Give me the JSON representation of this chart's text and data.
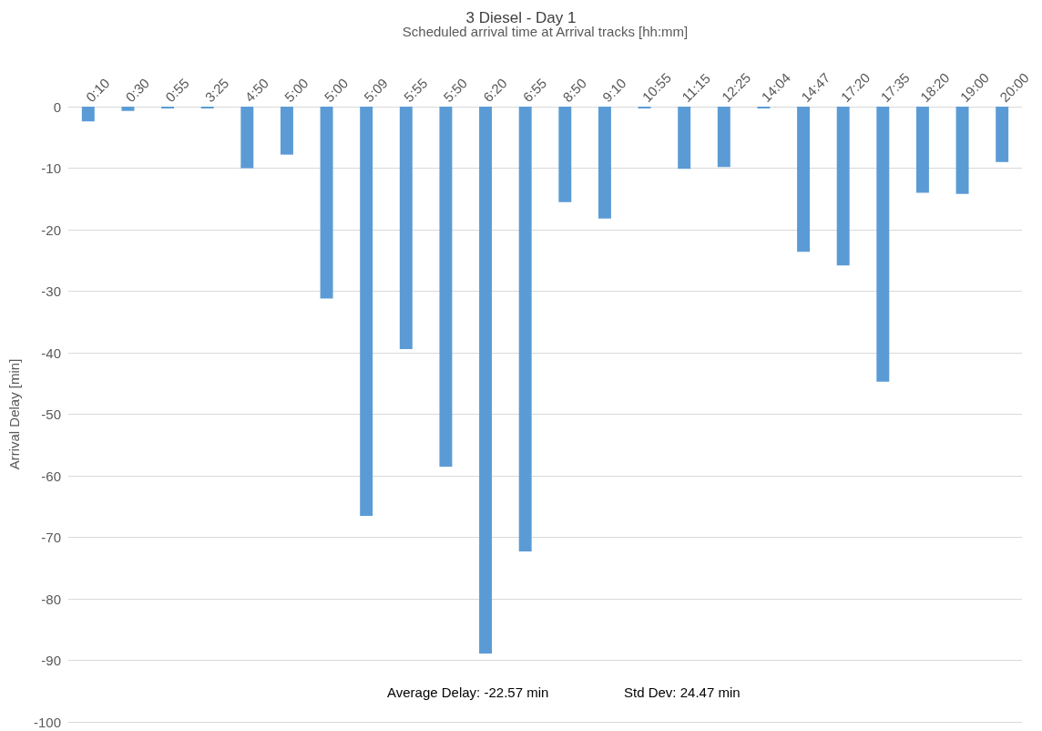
{
  "chart_data": {
    "type": "bar",
    "title": "3 Diesel - Day 1",
    "xlabel": "Scheduled arrival time at Arrival tracks [hh:mm]",
    "ylabel": "Arrival Delay [min]",
    "categories": [
      "0:10",
      "0:30",
      "0:55",
      "3:25",
      "4:50",
      "5:00",
      "5:00",
      "5:09",
      "5:55",
      "5:50",
      "6:20",
      "6:55",
      "8:50",
      "9:10",
      "10:55",
      "11:15",
      "12:25",
      "14:04",
      "14:47",
      "17:20",
      "17:35",
      "18:20",
      "19:00",
      "20:00"
    ],
    "values": [
      -2.4,
      -0.7,
      -0.3,
      -0.3,
      -10,
      -7.8,
      -31.2,
      -66.5,
      -39.4,
      -58.5,
      -88.9,
      -72.3,
      -15.5,
      -18.2,
      -0.3,
      -10.1,
      -9.8,
      -0.3,
      -23.6,
      -25.8,
      -44.7,
      -14,
      -14.2,
      -9
    ],
    "color": "#5b9bd5",
    "ylim": [
      -100,
      0
    ],
    "yticks": [
      0,
      -10,
      -20,
      -30,
      -40,
      -50,
      -60,
      -70,
      -80,
      -90,
      -100
    ],
    "grid": "y",
    "annotations": [
      "Average Delay: -22.57 min",
      "Std Dev: 24.47 min"
    ]
  }
}
